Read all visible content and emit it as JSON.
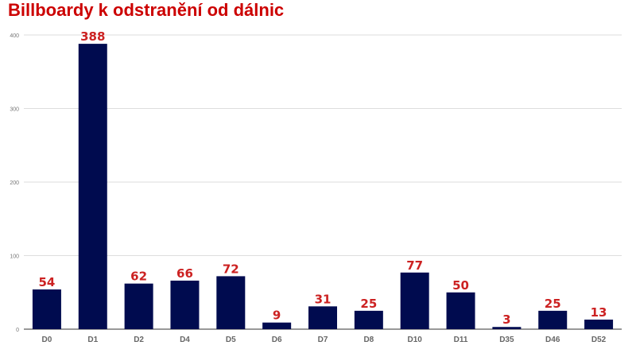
{
  "chart_data": {
    "type": "bar",
    "title": "Billboardy k odstranění od dálnic",
    "categories": [
      "D0",
      "D1",
      "D2",
      "D4",
      "D5",
      "D6",
      "D7",
      "D8",
      "D10",
      "D11",
      "D35",
      "D46",
      "D52"
    ],
    "values": [
      54,
      388,
      62,
      66,
      72,
      9,
      31,
      25,
      77,
      50,
      3,
      25,
      13
    ],
    "yticks": [
      0,
      100,
      200,
      300,
      400
    ],
    "ylim": [
      0,
      400
    ],
    "grid": true,
    "data_labels": true,
    "colors": {
      "bar": "#000b4f",
      "label": "#cc2222",
      "title": "#cc0000"
    }
  }
}
